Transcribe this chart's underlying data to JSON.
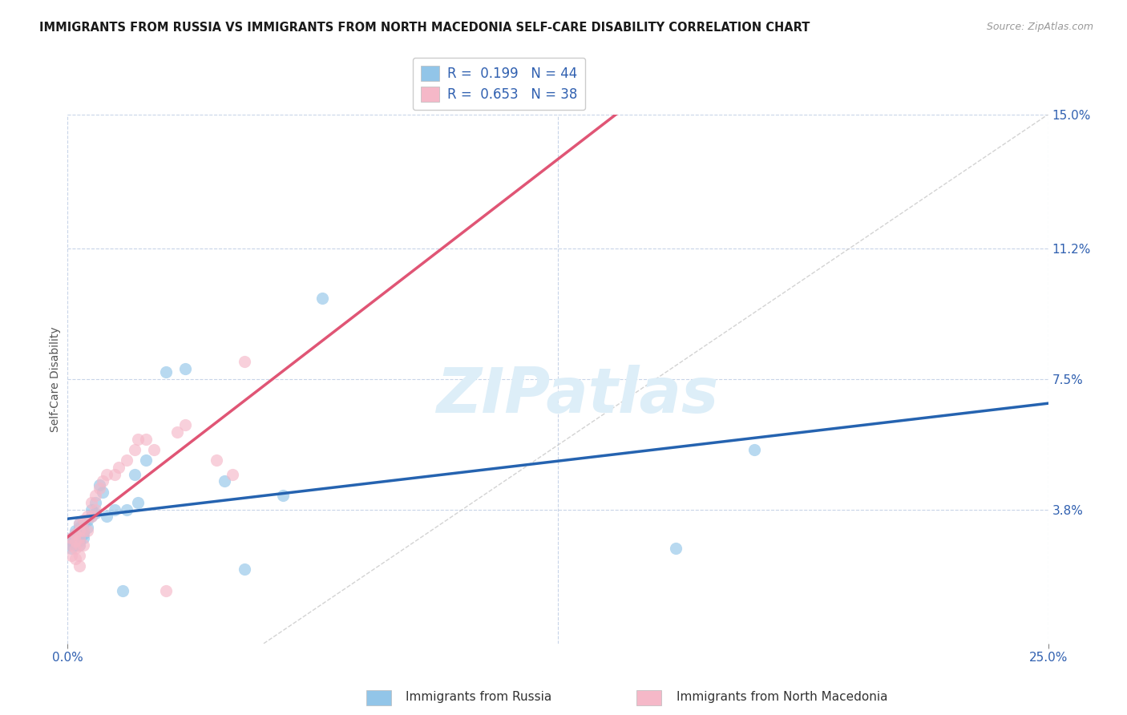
{
  "title": "IMMIGRANTS FROM RUSSIA VS IMMIGRANTS FROM NORTH MACEDONIA SELF-CARE DISABILITY CORRELATION CHART",
  "source": "Source: ZipAtlas.com",
  "ylabel": "Self-Care Disability",
  "xlim": [
    0.0,
    0.25
  ],
  "ylim": [
    0.0,
    0.15
  ],
  "ytick_labels": [
    "15.0%",
    "11.2%",
    "7.5%",
    "3.8%"
  ],
  "ytick_values": [
    0.15,
    0.112,
    0.075,
    0.038
  ],
  "russia_R": 0.199,
  "russia_N": 44,
  "macedonia_R": 0.653,
  "macedonia_N": 38,
  "russia_color": "#92c5e8",
  "macedonia_color": "#f5b8c8",
  "russia_line_color": "#2563b0",
  "macedonia_line_color": "#e05575",
  "ref_line_color": "#c8c8c8",
  "watermark_text": "ZIPatlas",
  "watermark_color": "#ddeef8",
  "background_color": "#ffffff",
  "grid_color": "#c8d4e8",
  "russia_x": [
    0.001,
    0.001,
    0.001,
    0.001,
    0.002,
    0.002,
    0.002,
    0.002,
    0.002,
    0.003,
    0.003,
    0.003,
    0.003,
    0.003,
    0.003,
    0.003,
    0.004,
    0.004,
    0.004,
    0.004,
    0.004,
    0.005,
    0.005,
    0.006,
    0.006,
    0.007,
    0.007,
    0.008,
    0.009,
    0.01,
    0.012,
    0.014,
    0.015,
    0.017,
    0.018,
    0.02,
    0.025,
    0.03,
    0.04,
    0.045,
    0.055,
    0.065,
    0.155,
    0.175
  ],
  "russia_y": [
    0.03,
    0.029,
    0.028,
    0.027,
    0.032,
    0.031,
    0.03,
    0.029,
    0.028,
    0.034,
    0.033,
    0.032,
    0.031,
    0.03,
    0.029,
    0.028,
    0.035,
    0.034,
    0.032,
    0.031,
    0.03,
    0.035,
    0.033,
    0.038,
    0.036,
    0.04,
    0.037,
    0.045,
    0.043,
    0.036,
    0.038,
    0.015,
    0.038,
    0.048,
    0.04,
    0.052,
    0.077,
    0.078,
    0.046,
    0.021,
    0.042,
    0.098,
    0.027,
    0.055
  ],
  "macedonia_x": [
    0.001,
    0.001,
    0.001,
    0.002,
    0.002,
    0.002,
    0.002,
    0.003,
    0.003,
    0.003,
    0.003,
    0.003,
    0.003,
    0.004,
    0.004,
    0.004,
    0.005,
    0.005,
    0.006,
    0.006,
    0.007,
    0.007,
    0.008,
    0.009,
    0.01,
    0.012,
    0.013,
    0.015,
    0.017,
    0.018,
    0.02,
    0.022,
    0.025,
    0.028,
    0.03,
    0.038,
    0.042,
    0.045
  ],
  "macedonia_y": [
    0.03,
    0.028,
    0.025,
    0.031,
    0.029,
    0.027,
    0.024,
    0.034,
    0.032,
    0.03,
    0.028,
    0.025,
    0.022,
    0.035,
    0.032,
    0.028,
    0.036,
    0.032,
    0.04,
    0.036,
    0.042,
    0.038,
    0.044,
    0.046,
    0.048,
    0.048,
    0.05,
    0.052,
    0.055,
    0.058,
    0.058,
    0.055,
    0.015,
    0.06,
    0.062,
    0.052,
    0.048,
    0.08
  ],
  "legend_russia_label": "R =  0.199   N = 44",
  "legend_macedonia_label": "R =  0.653   N = 38",
  "bottom_legend_russia": "Immigrants from Russia",
  "bottom_legend_macedonia": "Immigrants from North Macedonia"
}
